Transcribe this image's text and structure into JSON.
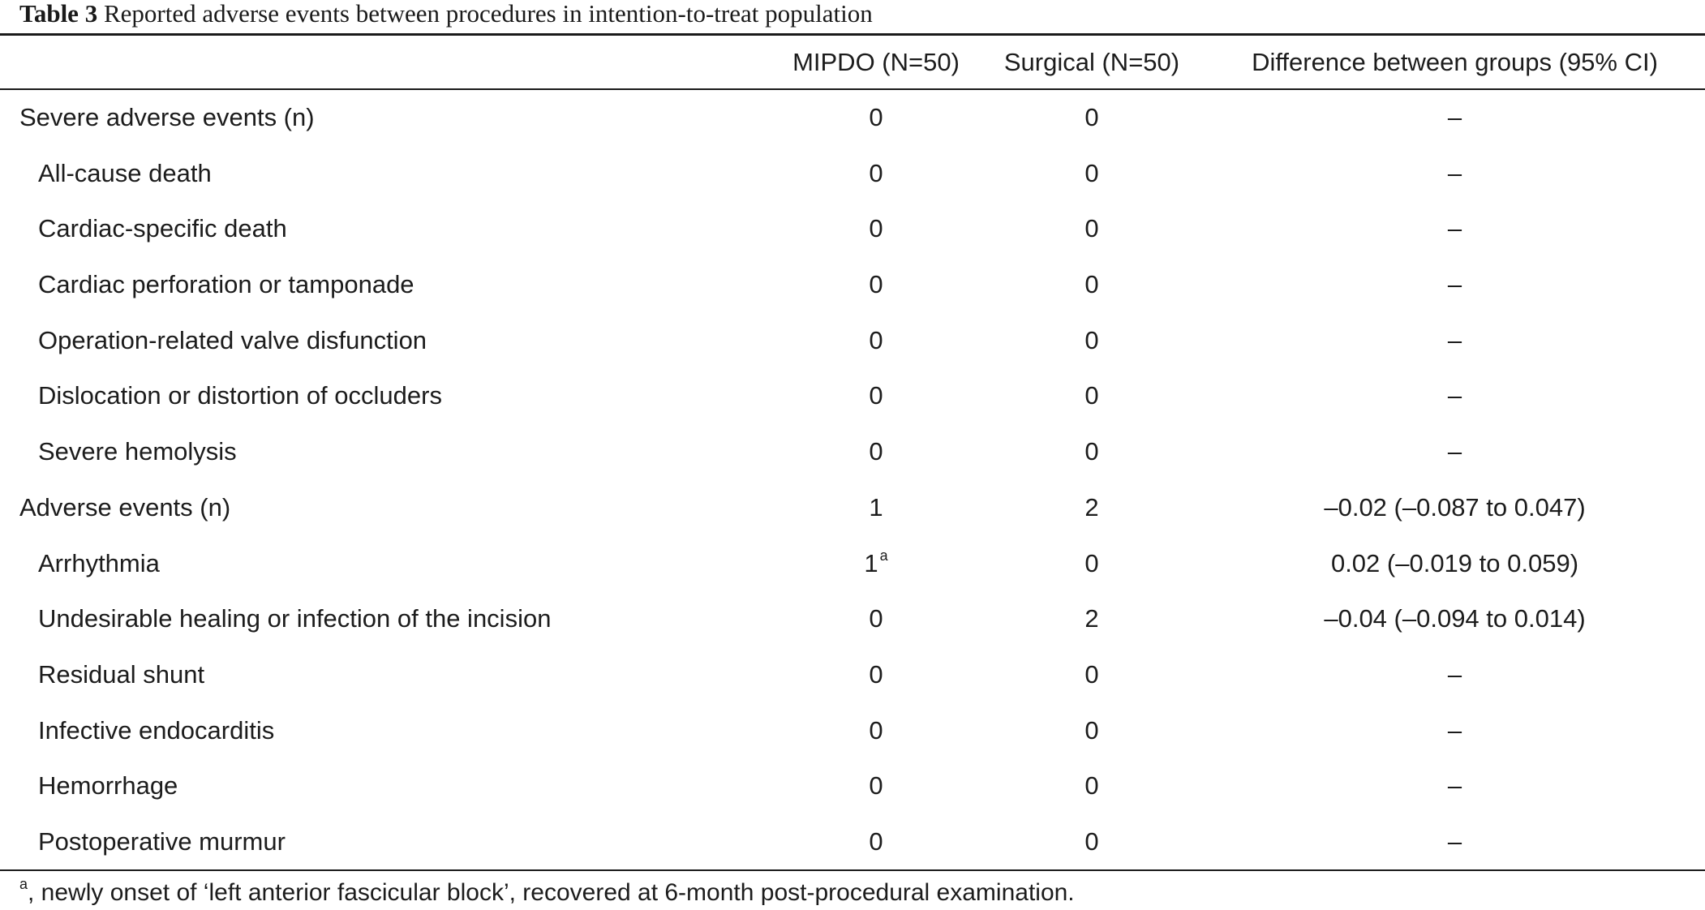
{
  "caption": {
    "label": "Table 3",
    "text": "Reported adverse events between procedures in intention-to-treat population"
  },
  "columns": {
    "mipdo": "MIPDO (N=50)",
    "surgical": "Surgical (N=50)",
    "difference": "Difference between groups (95% CI)"
  },
  "rows": [
    {
      "label": "Severe adverse events (n)",
      "indent": false,
      "mipdo": "0",
      "mipdo_mark": "",
      "surgical": "0",
      "difference": "–"
    },
    {
      "label": "All-cause death",
      "indent": true,
      "mipdo": "0",
      "mipdo_mark": "",
      "surgical": "0",
      "difference": "–"
    },
    {
      "label": "Cardiac-specific death",
      "indent": true,
      "mipdo": "0",
      "mipdo_mark": "",
      "surgical": "0",
      "difference": "–"
    },
    {
      "label": "Cardiac perforation or tamponade",
      "indent": true,
      "mipdo": "0",
      "mipdo_mark": "",
      "surgical": "0",
      "difference": "–"
    },
    {
      "label": "Operation-related valve disfunction",
      "indent": true,
      "mipdo": "0",
      "mipdo_mark": "",
      "surgical": "0",
      "difference": "–"
    },
    {
      "label": "Dislocation or distortion of occluders",
      "indent": true,
      "mipdo": "0",
      "mipdo_mark": "",
      "surgical": "0",
      "difference": "–"
    },
    {
      "label": "Severe hemolysis",
      "indent": true,
      "mipdo": "0",
      "mipdo_mark": "",
      "surgical": "0",
      "difference": "–"
    },
    {
      "label": "Adverse events (n)",
      "indent": false,
      "mipdo": "1",
      "mipdo_mark": "",
      "surgical": "2",
      "difference": "–0.02 (–0.087 to 0.047)"
    },
    {
      "label": "Arrhythmia",
      "indent": true,
      "mipdo": "1",
      "mipdo_mark": "a",
      "surgical": "0",
      "difference": "0.02 (–0.019 to 0.059)"
    },
    {
      "label": "Undesirable healing or infection of the incision",
      "indent": true,
      "mipdo": "0",
      "mipdo_mark": "",
      "surgical": "2",
      "difference": "–0.04 (–0.094 to 0.014)"
    },
    {
      "label": "Residual shunt",
      "indent": true,
      "mipdo": "0",
      "mipdo_mark": "",
      "surgical": "0",
      "difference": "–"
    },
    {
      "label": "Infective endocarditis",
      "indent": true,
      "mipdo": "0",
      "mipdo_mark": "",
      "surgical": "0",
      "difference": "–"
    },
    {
      "label": "Hemorrhage",
      "indent": true,
      "mipdo": "0",
      "mipdo_mark": "",
      "surgical": "0",
      "difference": "–"
    },
    {
      "label": "Postoperative murmur",
      "indent": true,
      "mipdo": "0",
      "mipdo_mark": "",
      "surgical": "0",
      "difference": "–"
    }
  ],
  "footnote": {
    "mark": "a",
    "text": ", newly onset of ‘left anterior fascicular block’, recovered at 6-month post-procedural examination."
  }
}
